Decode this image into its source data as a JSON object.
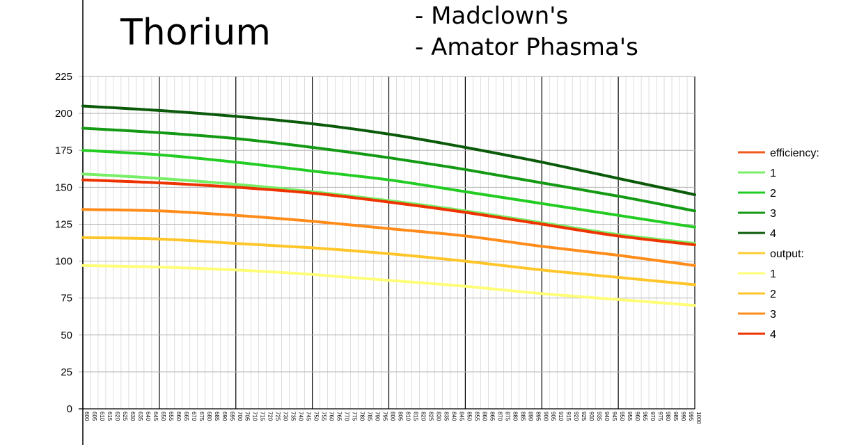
{
  "header": {
    "title": "Thorium",
    "credit_1": "- Madclown's",
    "credit_2": "- Amator Phasma's"
  },
  "chart_data": {
    "type": "line",
    "title": "Thorium",
    "xlabel": "",
    "ylabel": "",
    "xlim": [
      600,
      1000
    ],
    "ylim": [
      0,
      225
    ],
    "yticks": [
      0,
      25,
      50,
      75,
      100,
      125,
      150,
      175,
      200,
      225
    ],
    "xticks": [
      "600",
      "605",
      "610",
      "615",
      "620",
      "625",
      "630",
      "635",
      "640",
      "645",
      "650",
      "655",
      "660",
      "665",
      "670",
      "675",
      "680",
      "685",
      "690",
      "695",
      "700",
      "705",
      "710",
      "715",
      "720",
      "725",
      "730",
      "735",
      "740",
      "745",
      "750",
      "755",
      "760",
      "765",
      "770",
      "775",
      "780",
      "785",
      "790",
      "795",
      "800",
      "805",
      "810",
      "815",
      "820",
      "825",
      "830",
      "835",
      "840",
      "845",
      "850",
      "855",
      "860",
      "865",
      "870",
      "875",
      "880",
      "885",
      "890",
      "895",
      "900",
      "905",
      "910",
      "915",
      "920",
      "925",
      "930",
      "935",
      "940",
      "945",
      "950",
      "955",
      "960",
      "965",
      "970",
      "975",
      "980",
      "985",
      "990",
      "995",
      "1000"
    ],
    "grid": true,
    "legend_position": "right",
    "x": [
      600,
      650,
      700,
      750,
      800,
      850,
      900,
      950,
      1000
    ],
    "legend_groups": [
      {
        "header": "efficiency:",
        "header_color": "#f05a1e"
      },
      {
        "header": "output:",
        "header_color": "#ffcc33"
      }
    ],
    "series": [
      {
        "group": 0,
        "name": "1",
        "color": "#77ee66",
        "values": [
          159,
          156,
          152,
          147,
          141,
          134,
          126,
          118,
          112
        ]
      },
      {
        "group": 0,
        "name": "2",
        "color": "#22cc22",
        "values": [
          175,
          172,
          167,
          161,
          155,
          147,
          139,
          131,
          123
        ]
      },
      {
        "group": 0,
        "name": "3",
        "color": "#139913",
        "values": [
          190,
          187,
          183,
          177,
          170,
          162,
          153,
          144,
          134
        ]
      },
      {
        "group": 0,
        "name": "4",
        "color": "#0a5a0a",
        "values": [
          205,
          202,
          198,
          193,
          186,
          177,
          167,
          156,
          145
        ]
      },
      {
        "group": 1,
        "name": "1",
        "color": "#ffff77",
        "values": [
          97,
          96,
          94,
          91,
          87,
          83,
          78,
          74,
          70
        ]
      },
      {
        "group": 1,
        "name": "2",
        "color": "#ffc62a",
        "values": [
          116,
          115,
          112,
          109,
          105,
          100,
          94,
          89,
          84
        ]
      },
      {
        "group": 1,
        "name": "3",
        "color": "#ff8c1a",
        "values": [
          135,
          134,
          131,
          127,
          122,
          117,
          110,
          104,
          97
        ]
      },
      {
        "group": 1,
        "name": "4",
        "color": "#ee3300",
        "values": [
          155,
          153,
          150,
          146,
          140,
          133,
          125,
          117,
          111
        ]
      }
    ]
  }
}
